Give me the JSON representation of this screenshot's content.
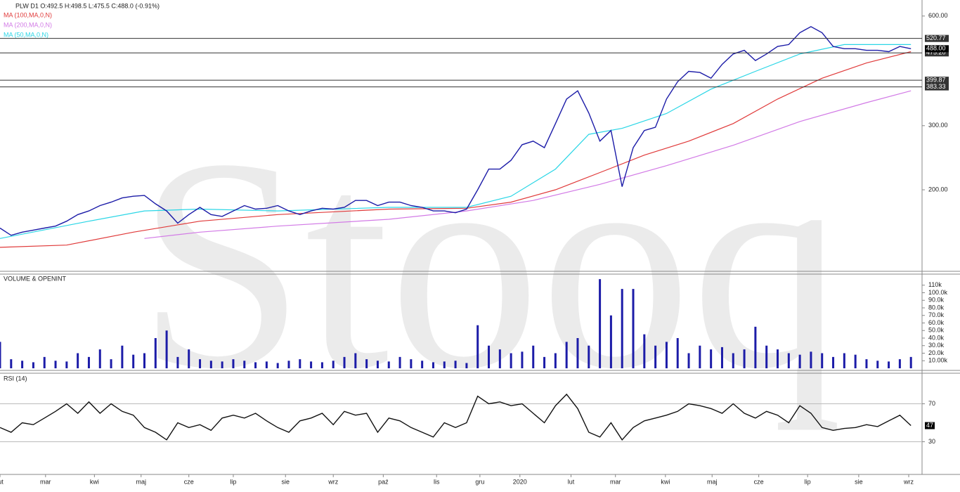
{
  "chart_data": [
    {
      "type": "line",
      "title": "PLW  D1  O:492.5  H:498.5  L:475.5  C:488.0  (-0.91%)",
      "watermark": "Stooq",
      "log_scale": true,
      "color": "#1c1ca8",
      "x": [
        0,
        1,
        2,
        3,
        4,
        5,
        6,
        7,
        8,
        9,
        10,
        11,
        12,
        13,
        14,
        15,
        16,
        17,
        18,
        19,
        20,
        21,
        22,
        23,
        24,
        25,
        26,
        27,
        28,
        29,
        30,
        31,
        32,
        33,
        34,
        35,
        36,
        37,
        38,
        39,
        40,
        41,
        42,
        43,
        44,
        45,
        46,
        47,
        48,
        49,
        50,
        51,
        52,
        53,
        54,
        55,
        56,
        57,
        58,
        59,
        60,
        61,
        62,
        63,
        64,
        65,
        66,
        67,
        68,
        69,
        70,
        71,
        72,
        73,
        74,
        75,
        76,
        77,
        78,
        79,
        80,
        81,
        82
      ],
      "values": [
        157,
        150,
        153,
        155,
        157,
        159,
        164,
        171,
        175,
        181,
        185,
        190,
        192,
        193,
        183,
        175,
        162,
        171,
        179,
        171,
        169,
        175,
        181,
        177,
        178,
        181,
        175,
        171,
        175,
        178,
        177,
        179,
        187,
        187,
        181,
        185,
        185,
        181,
        179,
        175,
        175,
        173,
        177,
        200,
        228,
        228,
        241,
        266,
        272,
        261,
        304,
        355,
        374,
        325,
        272,
        291,
        204,
        261,
        291,
        297,
        355,
        396,
        423,
        420,
        405,
        442,
        472,
        483,
        453,
        472,
        495,
        501,
        540,
        561,
        540,
        495,
        488,
        488,
        483,
        483,
        479,
        495,
        488
      ],
      "series": [
        {
          "name": "MA (100,MA,0,N)",
          "color": "#e03a3a",
          "x": [
            0,
            6,
            12,
            18,
            25,
            35,
            42,
            46,
            50,
            54,
            58,
            62,
            66,
            70,
            74,
            78,
            82
          ],
          "values": [
            139,
            141,
            153,
            164,
            171,
            177,
            178,
            185,
            200,
            223,
            249,
            272,
            304,
            355,
            405,
            446,
            479
          ]
        },
        {
          "name": "MA (200,MA,0,N)",
          "color": "#d27ae6",
          "x": [
            13,
            18,
            25,
            35,
            42,
            48,
            54,
            60,
            66,
            72,
            78,
            82
          ],
          "values": [
            147,
            153,
            159,
            166,
            175,
            187,
            207,
            233,
            265,
            308,
            347,
            374
          ]
        },
        {
          "name": "MA (50,MA,0,N)",
          "color": "#2ad6e6",
          "x": [
            0,
            8,
            13,
            18,
            25,
            35,
            42,
            46,
            50,
            53,
            56,
            60,
            64,
            68,
            72,
            76,
            82
          ],
          "values": [
            147,
            164,
            175,
            177,
            175,
            179,
            179,
            192,
            228,
            284,
            295,
            324,
            378,
            423,
            472,
            501,
            501
          ]
        }
      ],
      "levels": [
        {
          "value": 520.77,
          "label": "520.77"
        },
        {
          "value": 475.2,
          "label": "475.20"
        },
        {
          "value": 399.87,
          "label": "399.87"
        },
        {
          "value": 383.33,
          "label": "383.33"
        }
      ],
      "last_price": {
        "value": 488,
        "label": "488.00"
      },
      "xlim": [
        0,
        83
      ],
      "ylim": [
        120,
        664
      ],
      "yticks": [
        {
          "value": 200,
          "label": "200.00"
        },
        {
          "value": 300,
          "label": "300.00"
        },
        {
          "value": 600,
          "label": "600.00"
        }
      ]
    },
    {
      "type": "bar",
      "title": "VOLUME & OPENINT",
      "color": "#1c1ca8",
      "values": [
        35000,
        12000,
        10000,
        8000,
        15000,
        10000,
        9000,
        20000,
        15000,
        25000,
        12000,
        30000,
        18000,
        20000,
        40000,
        50000,
        15000,
        25000,
        12000,
        10000,
        9000,
        12000,
        10000,
        8000,
        9000,
        7000,
        10000,
        12000,
        9000,
        8000,
        10000,
        15000,
        20000,
        12000,
        10000,
        9000,
        15000,
        12000,
        10000,
        8000,
        9000,
        10000,
        7000,
        57000,
        30000,
        25000,
        20000,
        22000,
        30000,
        15000,
        20000,
        35000,
        40000,
        30000,
        118000,
        70000,
        105000,
        105000,
        45000,
        30000,
        35000,
        40000,
        20000,
        30000,
        25000,
        28000,
        20000,
        25000,
        55000,
        30000,
        25000,
        20000,
        18000,
        22000,
        20000,
        15000,
        20000,
        18000,
        12000,
        10000,
        9000,
        12000,
        15000
      ],
      "ylim": [
        0,
        120000
      ],
      "yticks": [
        {
          "value": 10000,
          "label": "10.00k"
        },
        {
          "value": 20000,
          "label": "20.0k"
        },
        {
          "value": 30000,
          "label": "30.0k"
        },
        {
          "value": 40000,
          "label": "40.0k"
        },
        {
          "value": 50000,
          "label": "50.0k"
        },
        {
          "value": 60000,
          "label": "60.0k"
        },
        {
          "value": 70000,
          "label": "70.0k"
        },
        {
          "value": 80000,
          "label": "80.0k"
        },
        {
          "value": 90000,
          "label": "90.0k"
        },
        {
          "value": 100000,
          "label": "100.0k"
        },
        {
          "value": 110000,
          "label": "110k"
        }
      ]
    },
    {
      "type": "line",
      "title": "RSI (14)",
      "color": "#111111",
      "values": [
        45,
        40,
        50,
        48,
        55,
        62,
        70,
        60,
        72,
        60,
        70,
        62,
        58,
        45,
        40,
        32,
        50,
        45,
        48,
        42,
        55,
        58,
        55,
        60,
        52,
        45,
        40,
        52,
        55,
        60,
        48,
        62,
        58,
        60,
        40,
        55,
        52,
        45,
        40,
        35,
        50,
        45,
        50,
        78,
        70,
        72,
        68,
        70,
        60,
        50,
        68,
        80,
        65,
        40,
        35,
        50,
        32,
        45,
        52,
        55,
        58,
        62,
        70,
        68,
        65,
        60,
        70,
        60,
        55,
        62,
        58,
        50,
        68,
        60,
        45,
        42,
        44,
        45,
        48,
        46,
        52,
        58,
        47
      ],
      "ylim": [
        0,
        100
      ],
      "yticks": [
        30,
        70
      ],
      "xticks": [
        {
          "value": 0,
          "label": "lut"
        },
        {
          "value": 4.1,
          "label": "mar"
        },
        {
          "value": 8.5,
          "label": "kwi"
        },
        {
          "value": 12.7,
          "label": "maj"
        },
        {
          "value": 17,
          "label": "cze"
        },
        {
          "value": 21,
          "label": "lip"
        },
        {
          "value": 25.7,
          "label": "sie"
        },
        {
          "value": 30,
          "label": "wrz"
        },
        {
          "value": 34.5,
          "label": "paź"
        },
        {
          "value": 39.3,
          "label": "lis"
        },
        {
          "value": 43.2,
          "label": "gru"
        },
        {
          "value": 46.8,
          "label": "2020"
        },
        {
          "value": 51.4,
          "label": "lut"
        },
        {
          "value": 55.4,
          "label": "mar"
        },
        {
          "value": 59.9,
          "label": "kwi"
        },
        {
          "value": 64.1,
          "label": "maj"
        },
        {
          "value": 68.3,
          "label": "cze"
        },
        {
          "value": 72.7,
          "label": "lip"
        },
        {
          "value": 77.3,
          "label": "sie"
        },
        {
          "value": 81.8,
          "label": "wrz"
        }
      ]
    }
  ]
}
